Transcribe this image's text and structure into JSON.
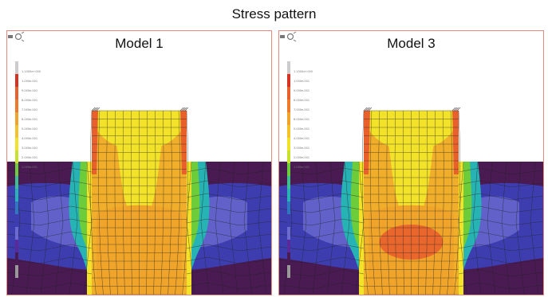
{
  "figure": {
    "title": "Stress pattern"
  },
  "panels": [
    {
      "title": "Model 1",
      "core": "orange"
    },
    {
      "title": "Model 3",
      "core": "red"
    }
  ],
  "legend": {
    "values": [
      "1.1000e+000",
      "1.000e-001",
      "9.000e-001",
      "8.000e-001",
      "7.000e-001",
      "6.000e-001",
      "5.000e-001",
      "4.000e-001",
      "3.000e-001",
      "2.000e-001",
      "1.000e-001"
    ]
  },
  "icons": {
    "view": "eye-icon"
  },
  "colors": {
    "background_purple": "#4a1a52",
    "blue": "#3d3db0",
    "light_blue": "#6a6ad0",
    "cyan": "#27b3b3",
    "green": "#6ccc3a",
    "yellow": "#f2e22a",
    "orange": "#f0a52a",
    "red_orange": "#e8602c",
    "red": "#d63325",
    "border": "#e58a80"
  }
}
